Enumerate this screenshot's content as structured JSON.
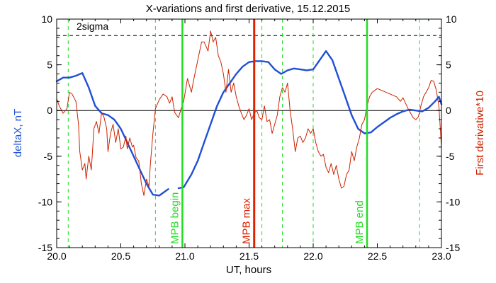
{
  "chart_data": {
    "type": "line",
    "title": "X-variations and first derivative, 15.12.2015",
    "xlabel": "UT, hours",
    "ylabel_left": "deltaX, nT",
    "ylabel_right": "First derivative*10",
    "xlim": [
      20.0,
      23.0
    ],
    "ylim_left": [
      -15,
      10
    ],
    "ylim_right": [
      -15,
      10
    ],
    "x_ticks": [
      "20.0",
      "20.5",
      "21.0",
      "21.5",
      "22.0",
      "22.5",
      "23.0"
    ],
    "x_tick_values": [
      20.0,
      20.5,
      21.0,
      21.5,
      22.0,
      22.5,
      23.0
    ],
    "y_ticks": [
      "-15",
      "-10",
      "-5",
      "0",
      "5",
      "10"
    ],
    "y_tick_values": [
      -15,
      -10,
      -5,
      0,
      5,
      10
    ],
    "colors": {
      "deltaX": "#1f4fd6",
      "derivative": "#cc2200",
      "mpb_lines": "#22dd22",
      "mpb_max_line": "#dd2200",
      "axes": "#000000"
    },
    "sigma": {
      "label": "2sigma",
      "value": 8.2
    },
    "zero_line": 0,
    "dashed_green_x": [
      20.09,
      20.77,
      21.6,
      21.76,
      22.0,
      22.83
    ],
    "markers": [
      {
        "label": "MPB begin",
        "x": 20.98,
        "color": "#22dd22"
      },
      {
        "label": "MPB max",
        "x": 21.54,
        "color": "#dd2200"
      },
      {
        "label": "MPB end",
        "x": 22.42,
        "color": "#22dd22"
      }
    ],
    "series": [
      {
        "name": "deltaX",
        "color": "#1f4fd6",
        "points": [
          [
            20.0,
            3.2
          ],
          [
            20.05,
            3.6
          ],
          [
            20.1,
            3.6
          ],
          [
            20.15,
            3.8
          ],
          [
            20.2,
            4.1
          ],
          [
            20.25,
            2.5
          ],
          [
            20.3,
            0.5
          ],
          [
            20.35,
            -0.3
          ],
          [
            20.4,
            -0.5
          ],
          [
            20.45,
            -1.0
          ],
          [
            20.5,
            -2.0
          ],
          [
            20.55,
            -3.5
          ],
          [
            20.6,
            -5.0
          ],
          [
            20.65,
            -6.5
          ],
          [
            20.7,
            -8.0
          ],
          [
            20.75,
            -9.2
          ],
          [
            20.8,
            -9.3
          ],
          [
            20.85,
            -8.8
          ],
          [
            20.87,
            -8.6
          ],
          null,
          [
            20.95,
            -8.5
          ],
          [
            20.99,
            -8.4
          ],
          [
            21.05,
            -7.0
          ],
          [
            21.1,
            -5.5
          ],
          [
            21.15,
            -3.5
          ],
          [
            21.2,
            -1.5
          ],
          [
            21.25,
            0.5
          ],
          [
            21.3,
            2.0
          ],
          [
            21.35,
            3.0
          ],
          [
            21.4,
            4.0
          ],
          [
            21.45,
            4.8
          ],
          [
            21.5,
            5.3
          ],
          [
            21.55,
            5.4
          ],
          [
            21.6,
            5.4
          ],
          [
            21.65,
            5.3
          ],
          [
            21.7,
            4.5
          ],
          [
            21.75,
            4.0
          ],
          [
            21.8,
            4.4
          ],
          [
            21.85,
            4.6
          ],
          [
            21.9,
            4.5
          ],
          [
            21.95,
            4.4
          ],
          [
            22.0,
            4.5
          ],
          [
            22.05,
            5.5
          ],
          [
            22.1,
            6.5
          ],
          [
            22.15,
            5.5
          ],
          [
            22.2,
            3.5
          ],
          [
            22.25,
            1.5
          ],
          [
            22.3,
            -0.5
          ],
          [
            22.35,
            -2.0
          ],
          [
            22.4,
            -2.5
          ],
          [
            22.45,
            -2.4
          ],
          [
            22.5,
            -1.8
          ],
          [
            22.55,
            -1.3
          ],
          [
            22.6,
            -0.8
          ],
          [
            22.65,
            -0.4
          ],
          [
            22.7,
            -0.1
          ],
          [
            22.75,
            0.1
          ],
          [
            22.8,
            0.0
          ],
          [
            22.85,
            -0.1
          ],
          [
            22.9,
            0.3
          ],
          [
            22.95,
            1.0
          ],
          [
            22.98,
            1.5
          ],
          [
            23.0,
            0.7
          ]
        ]
      },
      {
        "name": "First derivative*10",
        "color": "#cc2200",
        "points": [
          [
            20.0,
            1.3
          ],
          [
            20.02,
            0.5
          ],
          [
            20.05,
            -0.3
          ],
          [
            20.08,
            0.2
          ],
          [
            20.1,
            2.0
          ],
          [
            20.12,
            1.8
          ],
          [
            20.15,
            1.0
          ],
          [
            20.17,
            -1.5
          ],
          [
            20.18,
            -4.5
          ],
          [
            20.2,
            -6.5
          ],
          [
            20.22,
            -5.8
          ],
          [
            20.23,
            -7.5
          ],
          [
            20.25,
            -5.0
          ],
          [
            20.27,
            -6.5
          ],
          [
            20.29,
            -2.0
          ],
          [
            20.31,
            -1.2
          ],
          [
            20.33,
            -2.5
          ],
          [
            20.35,
            -0.2
          ],
          [
            20.37,
            -0.8
          ],
          [
            20.39,
            -2.0
          ],
          [
            20.4,
            -4.5
          ],
          [
            20.42,
            -2.5
          ],
          [
            20.44,
            -1.5
          ],
          [
            20.46,
            -3.5
          ],
          [
            20.48,
            -2.0
          ],
          [
            20.5,
            -4.2
          ],
          [
            20.52,
            -4.0
          ],
          [
            20.54,
            -2.8
          ],
          [
            20.55,
            -4.2
          ],
          [
            20.57,
            -3.0
          ],
          [
            20.59,
            -4.0
          ],
          [
            20.6,
            -3.8
          ],
          [
            20.62,
            -5.2
          ],
          [
            20.64,
            -5.5
          ],
          [
            20.66,
            -8.0
          ],
          [
            20.68,
            -9.3
          ],
          [
            20.7,
            -7.5
          ],
          [
            20.72,
            -8.3
          ],
          [
            20.73,
            -6.0
          ],
          [
            20.75,
            -2.5
          ],
          [
            20.77,
            0.2
          ],
          [
            20.8,
            1.2
          ],
          [
            20.83,
            1.8
          ],
          [
            20.86,
            1.5
          ],
          [
            20.88,
            0.8
          ],
          [
            20.9,
            1.5
          ],
          [
            20.92,
            -0.2
          ],
          [
            20.95,
            -0.8
          ],
          [
            20.97,
            0.2
          ],
          [
            20.99,
            1.0
          ],
          [
            21.02,
            3.5
          ],
          [
            21.05,
            2.0
          ],
          [
            21.07,
            3.5
          ],
          [
            21.1,
            5.5
          ],
          [
            21.13,
            7.5
          ],
          [
            21.15,
            7.5
          ],
          [
            21.18,
            6.5
          ],
          [
            21.2,
            8.7
          ],
          [
            21.22,
            7.5
          ],
          [
            21.24,
            8.0
          ],
          [
            21.26,
            6.0
          ],
          [
            21.28,
            5.3
          ],
          [
            21.3,
            4.0
          ],
          [
            21.32,
            2.0
          ],
          [
            21.34,
            4.5
          ],
          [
            21.36,
            2.0
          ],
          [
            21.38,
            3.0
          ],
          [
            21.4,
            1.5
          ],
          [
            21.42,
            0.5
          ],
          [
            21.44,
            -0.3
          ],
          [
            21.46,
            -1.0
          ],
          [
            21.48,
            -0.5
          ],
          [
            21.5,
            0.2
          ],
          [
            21.52,
            -1.0
          ],
          [
            21.54,
            -0.3
          ],
          [
            21.56,
            0.0
          ],
          [
            21.58,
            -0.8
          ],
          [
            21.6,
            -1.0
          ],
          [
            21.62,
            0.5
          ],
          [
            21.64,
            -1.2
          ],
          [
            21.66,
            -1.0
          ],
          [
            21.68,
            -2.5
          ],
          [
            21.7,
            -1.5
          ],
          [
            21.72,
            -0.5
          ],
          [
            21.74,
            1.5
          ],
          [
            21.76,
            2.5
          ],
          [
            21.78,
            2.0
          ],
          [
            21.8,
            3.0
          ],
          [
            21.82,
            0.0
          ],
          [
            21.84,
            -2.0
          ],
          [
            21.86,
            -4.5
          ],
          [
            21.88,
            -3.0
          ],
          [
            21.9,
            -2.8
          ],
          [
            21.92,
            -3.5
          ],
          [
            21.94,
            -3.0
          ],
          [
            21.96,
            -2.0
          ],
          [
            21.98,
            -2.5
          ],
          [
            22.0,
            -2.0
          ],
          [
            22.02,
            -3.5
          ],
          [
            22.04,
            -4.5
          ],
          [
            22.06,
            -5.0
          ],
          [
            22.08,
            -4.8
          ],
          [
            22.1,
            -6.2
          ],
          [
            22.12,
            -6.8
          ],
          [
            22.14,
            -5.8
          ],
          [
            22.16,
            -7.0
          ],
          [
            22.18,
            -6.0
          ],
          [
            22.2,
            -7.5
          ],
          [
            22.22,
            -8.5
          ],
          [
            22.24,
            -8.3
          ],
          [
            22.26,
            -7.0
          ],
          [
            22.28,
            -6.5
          ],
          [
            22.3,
            -4.5
          ],
          [
            22.32,
            -5.5
          ],
          [
            22.34,
            -4.0
          ],
          [
            22.36,
            -3.0
          ],
          [
            22.38,
            -1.5
          ],
          [
            22.4,
            -1.0
          ],
          [
            22.42,
            0.5
          ],
          [
            22.44,
            1.5
          ],
          [
            22.46,
            2.0
          ],
          [
            22.48,
            2.2
          ],
          [
            22.5,
            2.4
          ],
          [
            22.55,
            2.1
          ],
          [
            22.6,
            1.8
          ],
          [
            22.65,
            1.5
          ],
          [
            22.68,
            1.0
          ],
          [
            22.7,
            1.4
          ],
          [
            22.72,
            0.8
          ],
          [
            22.74,
            0.2
          ],
          [
            22.76,
            -0.3
          ],
          [
            22.78,
            -0.8
          ],
          [
            22.8,
            -1.0
          ],
          [
            22.82,
            -0.7
          ],
          [
            22.84,
            0.5
          ],
          [
            22.86,
            1.5
          ],
          [
            22.88,
            2.0
          ],
          [
            22.9,
            2.5
          ],
          [
            22.92,
            3.3
          ],
          [
            22.94,
            3.2
          ],
          [
            22.96,
            2.2
          ],
          [
            22.98,
            0.5
          ],
          [
            23.0,
            -4.0
          ]
        ]
      }
    ]
  }
}
